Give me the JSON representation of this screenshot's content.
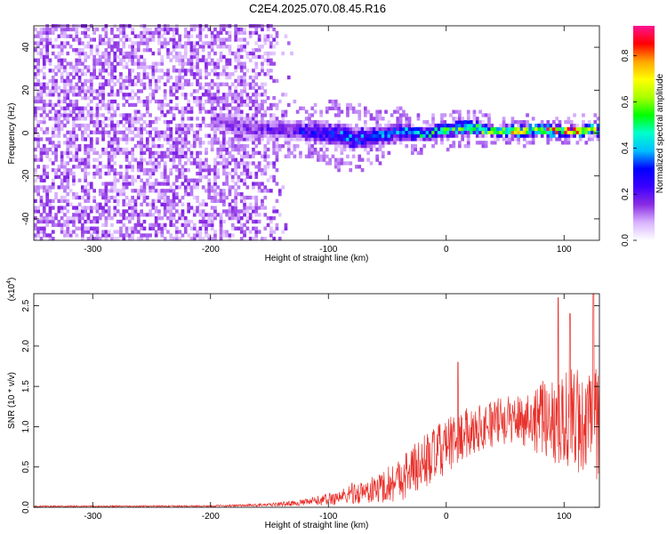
{
  "title": "C2E4.2025.070.08.45.R16",
  "chart_data": [
    {
      "type": "heatmap",
      "panel": "spectrogram",
      "xlabel": "Height of straight line (km)",
      "ylabel": "Frequency (Hz)",
      "xlim": [
        -350,
        130
      ],
      "ylim": [
        -50,
        50
      ],
      "x_ticks": [
        -300,
        -200,
        -100,
        0,
        100
      ],
      "x_tick_labels": [
        "-300",
        "-200",
        "-100",
        "0",
        "100"
      ],
      "y_ticks": [
        -40,
        -20,
        0,
        20,
        40
      ],
      "y_tick_labels": [
        "-40",
        "-20",
        "0",
        "20",
        "40"
      ],
      "colorbar": {
        "label": "Normalized spectral amplitude",
        "range": [
          0.0,
          0.93
        ],
        "ticks": [
          0.0,
          0.2,
          0.4,
          0.6,
          0.8
        ],
        "tick_labels": [
          "0.0",
          "0.2",
          "0.4",
          "0.6",
          "0.8"
        ],
        "colormap": [
          "#ffffff",
          "#d9b3ff",
          "#8a2be2",
          "#3b00ff",
          "#0000ff",
          "#00bfff",
          "#00ffcc",
          "#00ff00",
          "#aaff00",
          "#ffff00",
          "#ffa500",
          "#ff0000",
          "#ff1493"
        ]
      },
      "signal_track": {
        "x": [
          -200,
          -180,
          -160,
          -140,
          -120,
          -100,
          -80,
          -60,
          -40,
          -20,
          0,
          20,
          40,
          60,
          80,
          100,
          120,
          130
        ],
        "center_freq": [
          5,
          3,
          1,
          1,
          0,
          -1,
          -3,
          -2,
          0,
          -1,
          1,
          2,
          0,
          0,
          1,
          0,
          1,
          0
        ],
        "half_width": [
          6,
          7,
          6,
          6,
          6,
          7,
          7,
          6,
          5,
          4,
          4,
          4,
          3,
          3,
          3,
          3,
          3,
          3
        ],
        "amplitude": [
          0.15,
          0.18,
          0.2,
          0.22,
          0.3,
          0.35,
          0.4,
          0.38,
          0.45,
          0.55,
          0.62,
          0.7,
          0.75,
          0.82,
          0.85,
          0.9,
          0.92,
          0.9
        ]
      },
      "noise_region": {
        "x_range": [
          -350,
          -130
        ],
        "level": 0.12
      }
    },
    {
      "type": "line",
      "panel": "snr",
      "series_color": "#e8302a",
      "xlabel": "Height of straight line (km)",
      "ylabel": "SNR (10 * v/v)",
      "y_multiplier_label": "(x10",
      "y_multiplier_exp": "4",
      "xlim": [
        -350,
        130
      ],
      "ylim": [
        0,
        2.65
      ],
      "x_ticks": [
        -300,
        -200,
        -100,
        0,
        100
      ],
      "x_tick_labels": [
        "-300",
        "-200",
        "-100",
        "0",
        "100"
      ],
      "y_ticks": [
        0.0,
        0.5,
        1.0,
        1.5,
        2.0,
        2.5
      ],
      "y_tick_labels": [
        "0.0",
        "0.5",
        "1.0",
        "1.5",
        "2.0",
        "2.5"
      ],
      "envelope": {
        "x": [
          -350,
          -200,
          -150,
          -120,
          -100,
          -80,
          -60,
          -40,
          -20,
          0,
          20,
          40,
          60,
          80,
          100,
          120,
          130
        ],
        "mean": [
          0.01,
          0.015,
          0.03,
          0.06,
          0.1,
          0.16,
          0.22,
          0.35,
          0.55,
          0.75,
          0.95,
          1.05,
          1.1,
          1.1,
          1.1,
          1.05,
          1.0
        ],
        "spread": [
          0.01,
          0.01,
          0.02,
          0.04,
          0.08,
          0.12,
          0.18,
          0.28,
          0.35,
          0.35,
          0.3,
          0.3,
          0.3,
          0.45,
          0.65,
          0.7,
          0.7
        ]
      },
      "peaks": [
        {
          "x": 10,
          "y": 1.8
        },
        {
          "x": 95,
          "y": 2.6
        },
        {
          "x": 105,
          "y": 2.4
        },
        {
          "x": 125,
          "y": 2.65
        },
        {
          "x": -80,
          "y": 0.3
        }
      ]
    }
  ]
}
